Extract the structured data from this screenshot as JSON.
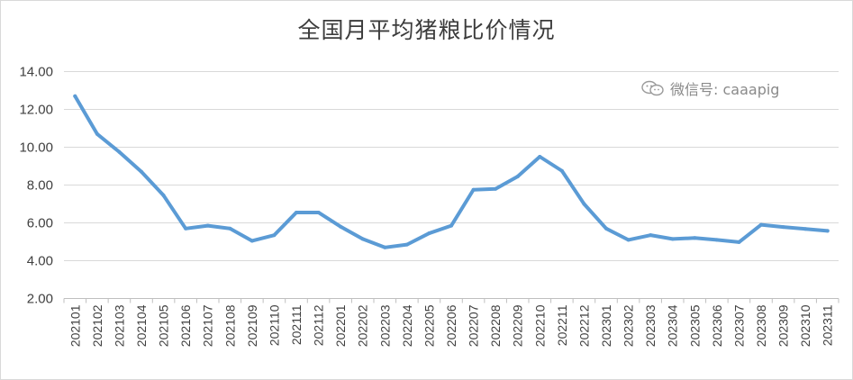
{
  "chart_data": {
    "type": "line",
    "title": "全国月平均猪粮比价情况",
    "watermark": "微信号: caaapig",
    "xlabel": "",
    "ylabel": "",
    "ylim": [
      2,
      14
    ],
    "y_ticks": [
      "2.00",
      "4.00",
      "6.00",
      "8.00",
      "10.00",
      "12.00",
      "14.00"
    ],
    "grid": true,
    "legend": "none",
    "line_color": "#5b9bd5",
    "x": [
      "202101",
      "202102",
      "202103",
      "202104",
      "202105",
      "202106",
      "202107",
      "202108",
      "202109",
      "202110",
      "202111",
      "202112",
      "202201",
      "202202",
      "202203",
      "202204",
      "202205",
      "202206",
      "202207",
      "202208",
      "202209",
      "202210",
      "202211",
      "202212",
      "202301",
      "202302",
      "202303",
      "202304",
      "202305",
      "202306",
      "202307",
      "202308",
      "202309",
      "202310",
      "202311"
    ],
    "series": [
      {
        "values": [
          12.7,
          10.7,
          9.75,
          8.7,
          7.45,
          5.7,
          5.85,
          5.7,
          5.05,
          5.35,
          6.55,
          6.55,
          5.8,
          5.15,
          4.7,
          4.85,
          5.45,
          5.85,
          7.75,
          7.8,
          8.45,
          9.5,
          8.75,
          7.0,
          5.7,
          5.1,
          5.35,
          5.15,
          5.2,
          5.1,
          4.98,
          5.9,
          5.78,
          5.68,
          5.58
        ]
      }
    ]
  }
}
